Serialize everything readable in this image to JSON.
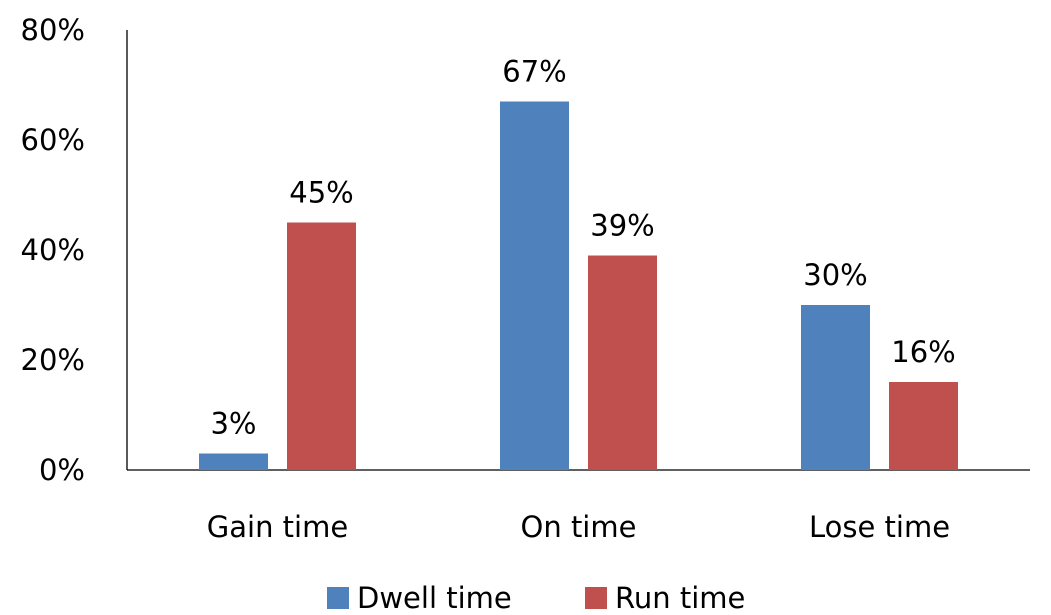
{
  "chart_data": {
    "type": "bar",
    "categories": [
      "Gain time",
      "On time",
      "Lose time"
    ],
    "series": [
      {
        "name": "Dwell time",
        "values": [
          3,
          67,
          30
        ],
        "labels": [
          "3%",
          "67%",
          "30%"
        ],
        "color": "#4F81BD"
      },
      {
        "name": "Run time",
        "values": [
          45,
          39,
          16
        ],
        "labels": [
          "45%",
          "39%",
          "16%"
        ],
        "color": "#C0504D"
      }
    ],
    "yticks": [
      0,
      20,
      40,
      60,
      80
    ],
    "ytick_labels": [
      "0%",
      "20%",
      "40%",
      "60%",
      "80%"
    ],
    "ylim": [
      0,
      80
    ],
    "unit": "%",
    "title": "",
    "xlabel": "",
    "ylabel": "",
    "grid": false,
    "legend_position": "bottom"
  }
}
